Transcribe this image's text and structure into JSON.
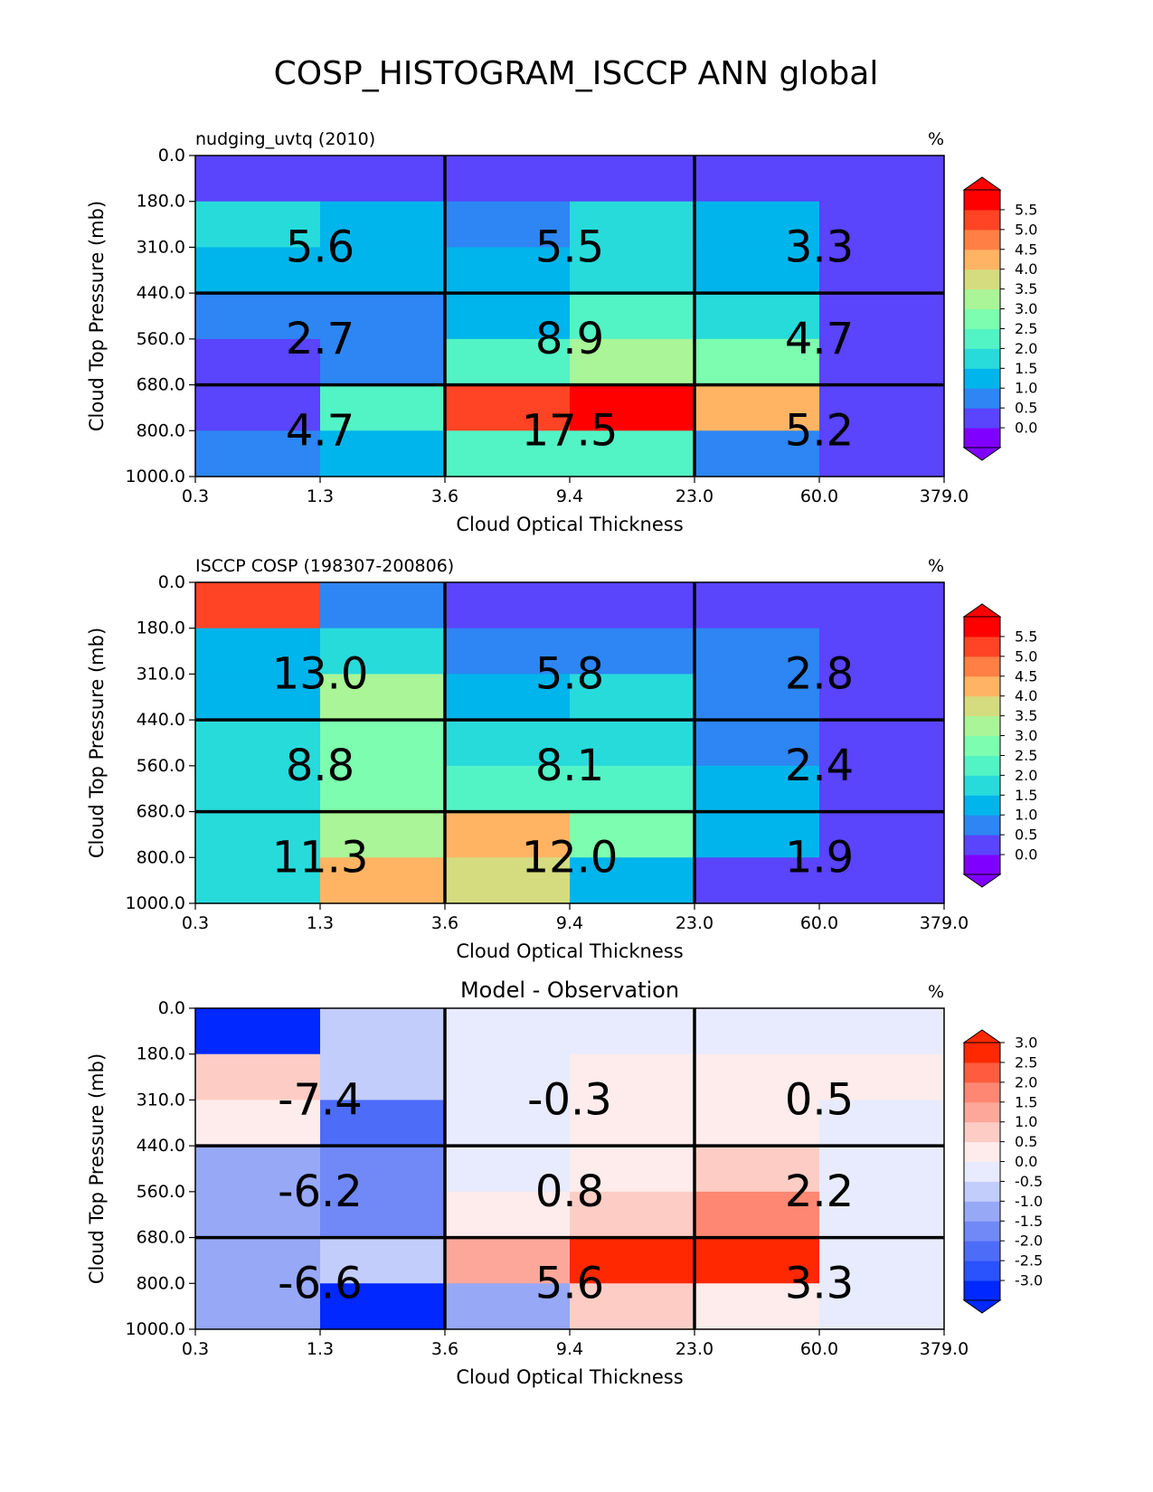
{
  "suptitle": "COSP_HISTOGRAM_ISCCP ANN global",
  "chart_data": [
    {
      "type": "heatmap",
      "title_left": "nudging_uvtq (2010)",
      "title_center": "",
      "title_right": "%",
      "xlabel": "Cloud Optical Thickness",
      "ylabel": "Cloud Top Pressure (mb)",
      "x_ticks": [
        "0.3",
        "1.3",
        "3.6",
        "9.4",
        "23.0",
        "60.0",
        "379.0"
      ],
      "y_ticks": [
        "0.0",
        "180.0",
        "310.0",
        "440.0",
        "560.0",
        "680.0",
        "800.0",
        "1000.0"
      ],
      "colorbar_ticks": [
        "5.5",
        "5.0",
        "4.5",
        "4.0",
        "3.5",
        "3.0",
        "2.5",
        "2.0",
        "1.5",
        "1.0",
        "0.5",
        "0.0"
      ],
      "colorbar_colors": [
        "#8000ff",
        "#5a44fc",
        "#2d86f3",
        "#00b5eb",
        "#27dbdb",
        "#52f3c5",
        "#7dfdaf",
        "#a9f597",
        "#d4dc7f",
        "#ffb463",
        "#ff7f45",
        "#ff4325",
        "#ff0000"
      ],
      "cells": [
        [
          1,
          1,
          1,
          1,
          1,
          1
        ],
        [
          4,
          3,
          2,
          4,
          3,
          1
        ],
        [
          3,
          3,
          3,
          4,
          3,
          1
        ],
        [
          2,
          2,
          3,
          5,
          4,
          1
        ],
        [
          1,
          2,
          5,
          7,
          6,
          1
        ],
        [
          1,
          5,
          11,
          12,
          9,
          1
        ],
        [
          2,
          3,
          5,
          5,
          2,
          1
        ]
      ],
      "block_values": [
        [
          "5.6",
          "5.5",
          "3.3"
        ],
        [
          "2.7",
          "8.9",
          "4.7"
        ],
        [
          "4.7",
          "17.5",
          "5.2"
        ]
      ]
    },
    {
      "type": "heatmap",
      "title_left": "ISCCP COSP (198307-200806)",
      "title_center": "",
      "title_right": "%",
      "xlabel": "Cloud Optical Thickness",
      "ylabel": "Cloud Top Pressure (mb)",
      "x_ticks": [
        "0.3",
        "1.3",
        "3.6",
        "9.4",
        "23.0",
        "60.0",
        "379.0"
      ],
      "y_ticks": [
        "0.0",
        "180.0",
        "310.0",
        "440.0",
        "560.0",
        "680.0",
        "800.0",
        "1000.0"
      ],
      "colorbar_ticks": [
        "5.5",
        "5.0",
        "4.5",
        "4.0",
        "3.5",
        "3.0",
        "2.5",
        "2.0",
        "1.5",
        "1.0",
        "0.5",
        "0.0"
      ],
      "colorbar_colors": [
        "#8000ff",
        "#5a44fc",
        "#2d86f3",
        "#00b5eb",
        "#27dbdb",
        "#52f3c5",
        "#7dfdaf",
        "#a9f597",
        "#d4dc7f",
        "#ffb463",
        "#ff7f45",
        "#ff4325",
        "#ff0000"
      ],
      "cells": [
        [
          11,
          2,
          1,
          1,
          1,
          1
        ],
        [
          3,
          4,
          2,
          2,
          2,
          1
        ],
        [
          3,
          7,
          3,
          4,
          2,
          1
        ],
        [
          4,
          6,
          4,
          4,
          2,
          1
        ],
        [
          4,
          6,
          5,
          5,
          3,
          1
        ],
        [
          4,
          7,
          9,
          6,
          3,
          1
        ],
        [
          4,
          9,
          8,
          3,
          1,
          1
        ]
      ],
      "block_values": [
        [
          "13.0",
          "5.8",
          "2.8"
        ],
        [
          "8.8",
          "8.1",
          "2.4"
        ],
        [
          "11.3",
          "12.0",
          "1.9"
        ]
      ]
    },
    {
      "type": "heatmap",
      "title_left": "",
      "title_center": "Model - Observation",
      "title_right": "%",
      "xlabel": "Cloud Optical Thickness",
      "ylabel": "Cloud Top Pressure (mb)",
      "x_ticks": [
        "0.3",
        "1.3",
        "3.6",
        "9.4",
        "23.0",
        "60.0",
        "379.0"
      ],
      "y_ticks": [
        "0.0",
        "180.0",
        "310.0",
        "440.0",
        "560.0",
        "680.0",
        "800.0",
        "1000.0"
      ],
      "colorbar_ticks": [
        "3.0",
        "2.5",
        "2.0",
        "1.5",
        "1.0",
        "0.5",
        "0.0",
        "-0.5",
        "-1.0",
        "-1.5",
        "-2.0",
        "-2.5",
        "-3.0"
      ],
      "colorbar_colors": [
        "#0028ff",
        "#2a52fd",
        "#4d6cf8",
        "#7189f6",
        "#97a8f7",
        "#c3cdfb",
        "#e8ebfd",
        "#fdeceb",
        "#fdcdc5",
        "#fca79a",
        "#fd8772",
        "#ff5c3f",
        "#ff2800"
      ],
      "cells": [
        [
          0,
          5,
          6,
          6,
          6,
          6
        ],
        [
          8,
          5,
          6,
          7,
          7,
          7
        ],
        [
          7,
          2,
          6,
          7,
          7,
          6
        ],
        [
          4,
          3,
          6,
          7,
          8,
          6
        ],
        [
          4,
          3,
          7,
          8,
          10,
          6
        ],
        [
          4,
          5,
          9,
          12,
          12,
          6
        ],
        [
          4,
          0,
          4,
          8,
          7,
          6
        ]
      ],
      "block_values": [
        [
          "-7.4",
          "-0.3",
          "0.5"
        ],
        [
          "-6.2",
          "0.8",
          "2.2"
        ],
        [
          "-6.6",
          "5.6",
          "3.3"
        ]
      ]
    }
  ]
}
